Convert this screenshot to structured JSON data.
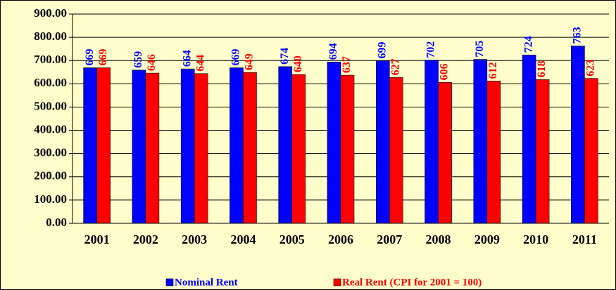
{
  "chart_data": {
    "type": "bar",
    "categories": [
      "2001",
      "2002",
      "2003",
      "2004",
      "2005",
      "2006",
      "2007",
      "2008",
      "2009",
      "2010",
      "2011"
    ],
    "series": [
      {
        "name": "Nominal Rent",
        "color": "#0000ff",
        "values": [
          669,
          659,
          664,
          669,
          674,
          694,
          699,
          702,
          705,
          724,
          763
        ]
      },
      {
        "name": "Real Rent (CPI for 2001 = 100)",
        "color": "#ff0000",
        "values": [
          669,
          646,
          644,
          649,
          640,
          637,
          627,
          606,
          612,
          618,
          623
        ]
      }
    ],
    "ylim": [
      0,
      900
    ],
    "yticks": [
      {
        "value": 0,
        "label": "0.00"
      },
      {
        "value": 100,
        "label": "100.00"
      },
      {
        "value": 200,
        "label": "200.00"
      },
      {
        "value": 300,
        "label": "300.00"
      },
      {
        "value": 400,
        "label": "400.00"
      },
      {
        "value": 500,
        "label": "500.00"
      },
      {
        "value": 600,
        "label": "600.00"
      },
      {
        "value": 700,
        "label": "700.00"
      },
      {
        "value": 800,
        "label": "800.00"
      },
      {
        "value": 900,
        "label": "900.00"
      }
    ],
    "grid": true,
    "legend": "bottom"
  }
}
